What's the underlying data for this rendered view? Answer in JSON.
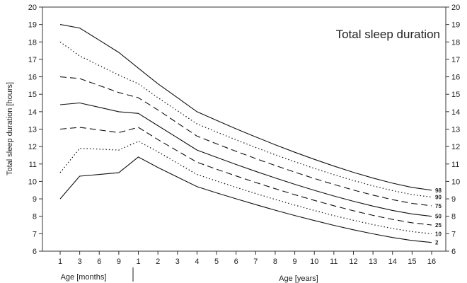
{
  "chart_data": {
    "type": "line",
    "title": "Total sleep duration",
    "ylabel": "Total sleep duration [hours]",
    "xlabel_months": "Age [months]",
    "xlabel_years": "Age [years]",
    "ylim": [
      6,
      20
    ],
    "y_ticks": [
      6,
      7,
      8,
      9,
      10,
      11,
      12,
      13,
      14,
      15,
      16,
      17,
      18,
      19,
      20
    ],
    "categories": [
      "1",
      "3",
      "6",
      "9",
      "1",
      "2",
      "3",
      "4",
      "5",
      "6",
      "7",
      "8",
      "9",
      "10",
      "11",
      "12",
      "13",
      "14",
      "15",
      "16"
    ],
    "series": [
      {
        "name": "98",
        "style": "solid",
        "values": [
          19.0,
          18.8,
          null,
          17.4,
          16.5,
          15.6,
          null,
          14.0,
          null,
          null,
          null,
          null,
          null,
          null,
          null,
          null,
          null,
          null,
          null,
          9.5
        ]
      },
      {
        "name": "90",
        "style": "dotted",
        "values": [
          18.0,
          17.2,
          null,
          16.1,
          15.6,
          14.8,
          null,
          13.3,
          null,
          null,
          null,
          null,
          null,
          null,
          null,
          null,
          null,
          null,
          null,
          9.1
        ]
      },
      {
        "name": "75",
        "style": "dashed",
        "values": [
          16.0,
          15.9,
          null,
          15.1,
          14.8,
          14.1,
          null,
          12.6,
          null,
          null,
          null,
          null,
          null,
          null,
          null,
          null,
          null,
          null,
          null,
          8.6
        ]
      },
      {
        "name": "50",
        "style": "solid",
        "values": [
          14.4,
          14.5,
          null,
          14.0,
          13.9,
          13.2,
          null,
          11.8,
          null,
          null,
          null,
          null,
          null,
          null,
          null,
          null,
          null,
          null,
          null,
          8.0
        ]
      },
      {
        "name": "25",
        "style": "dashed",
        "values": [
          13.0,
          13.1,
          null,
          12.8,
          13.1,
          12.4,
          null,
          11.1,
          null,
          null,
          null,
          null,
          null,
          null,
          null,
          null,
          null,
          null,
          null,
          7.5
        ]
      },
      {
        "name": "10",
        "style": "dotted",
        "values": [
          10.5,
          11.9,
          null,
          11.8,
          12.3,
          11.7,
          null,
          10.4,
          null,
          null,
          null,
          null,
          null,
          null,
          null,
          null,
          null,
          null,
          null,
          7.0
        ]
      },
      {
        "name": "2",
        "style": "solid",
        "values": [
          9.0,
          10.3,
          null,
          10.5,
          11.4,
          10.8,
          null,
          9.7,
          null,
          null,
          null,
          null,
          null,
          null,
          null,
          null,
          null,
          null,
          null,
          6.5
        ]
      }
    ]
  }
}
